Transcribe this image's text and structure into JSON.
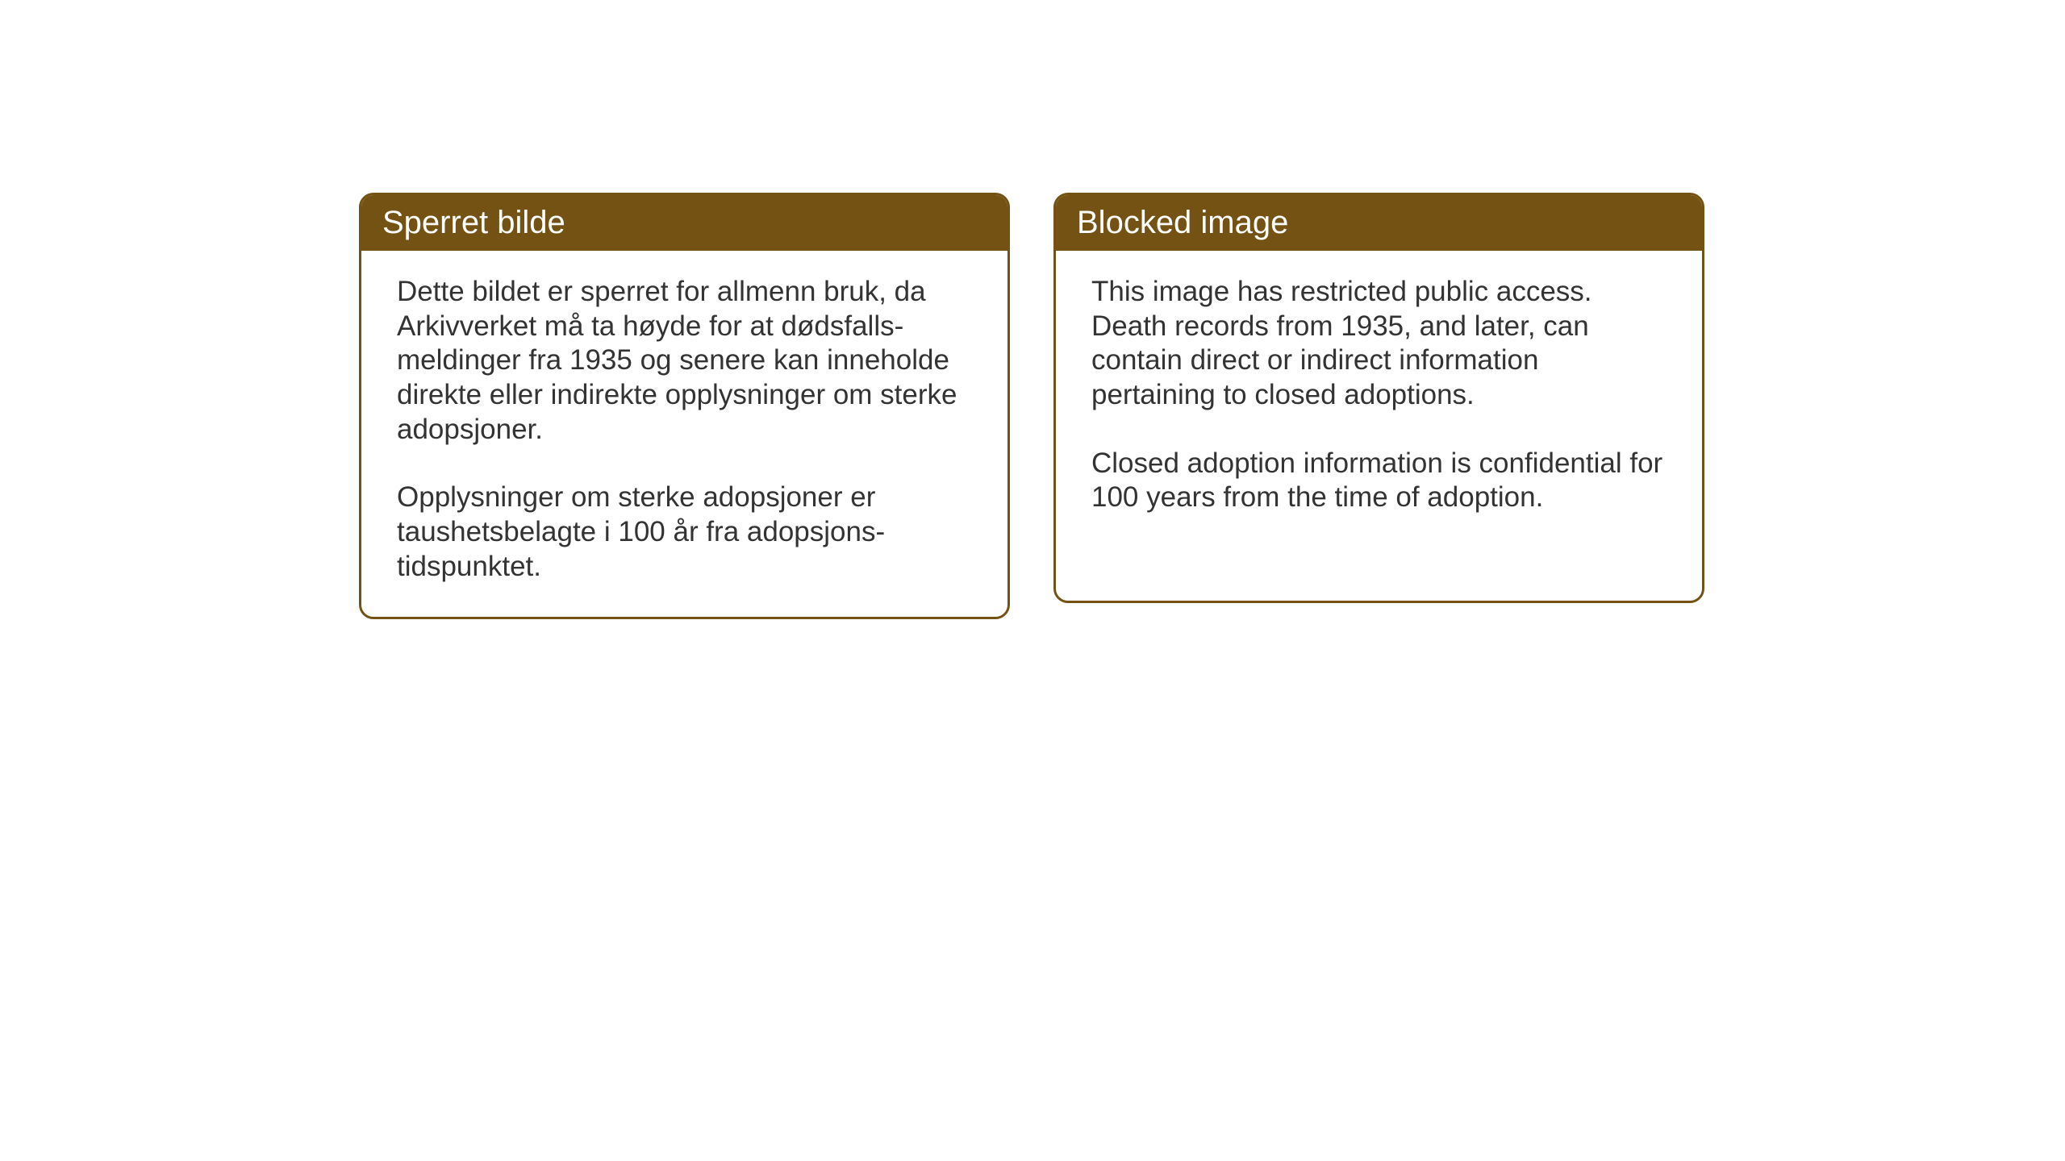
{
  "cards": {
    "norwegian": {
      "title": "Sperret bilde",
      "paragraph1": "Dette bildet er sperret for allmenn bruk, da Arkivverket må ta høyde for at dødsfalls-meldinger fra 1935 og senere kan inneholde direkte eller indirekte opplysninger om sterke adopsjoner.",
      "paragraph2": "Opplysninger om sterke adopsjoner er taushetsbelagte i 100 år fra adopsjons-tidspunktet."
    },
    "english": {
      "title": "Blocked image",
      "paragraph1": "This image has restricted public access. Death records from 1935, and later, can contain direct or indirect information pertaining to closed adoptions.",
      "paragraph2": "Closed adoption information is confidential for 100 years from the time of adoption."
    }
  },
  "styling": {
    "header_bg_color": "#735213",
    "header_text_color": "#ffffff",
    "border_color": "#735213",
    "body_text_color": "#333333",
    "background_color": "#ffffff",
    "title_fontsize": 40,
    "body_fontsize": 35,
    "border_radius": 18,
    "border_width": 3
  }
}
